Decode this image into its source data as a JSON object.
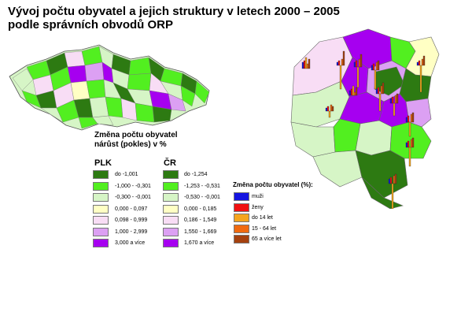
{
  "title": {
    "line1": "Vývoj počtu obyvatel a jejich struktury v letech 2000 – 2005",
    "line2": "podle správních obvodů ORP"
  },
  "legend_change": {
    "title_line1": "Změna počtu obyvatel",
    "title_line2": "nárůst (pokles) v %",
    "colors": [
      "#2d7a12",
      "#52ef20",
      "#d6f5c6",
      "#ffffc4",
      "#f8ddf5",
      "#dca0f3",
      "#a600f0"
    ],
    "plk": {
      "header": "PLK",
      "classes": [
        "do -1,001",
        "-1,000 - -0,301",
        "-0,300 - -0,001",
        "0,000 - 0,097",
        "0,098 - 0,999",
        "1,000 - 2,999",
        "3,000 a více"
      ]
    },
    "cr": {
      "header": "ČR",
      "classes": [
        "do -1,254",
        "-1,253 - -0,531",
        "-0,530 - -0,001",
        "0,000 - 0,185",
        "0,186 - 1,549",
        "1,550 - 1,669",
        "1,670 a více"
      ]
    }
  },
  "legend_bars": {
    "title": "Změna počtu obyvatel (%):",
    "items": [
      {
        "label": "muži",
        "color": "#1414e0"
      },
      {
        "label": "ženy",
        "color": "#f01010"
      },
      {
        "label": "do 14 let",
        "color": "#f5a51e"
      },
      {
        "label": "15 - 64 let",
        "color": "#f06a10"
      },
      {
        "label": "65 a více let",
        "color": "#a5410f"
      }
    ]
  },
  "maps": {
    "czech_republic": {
      "region": "ČR"
    },
    "plzen_region": {
      "region": "PLK"
    }
  }
}
